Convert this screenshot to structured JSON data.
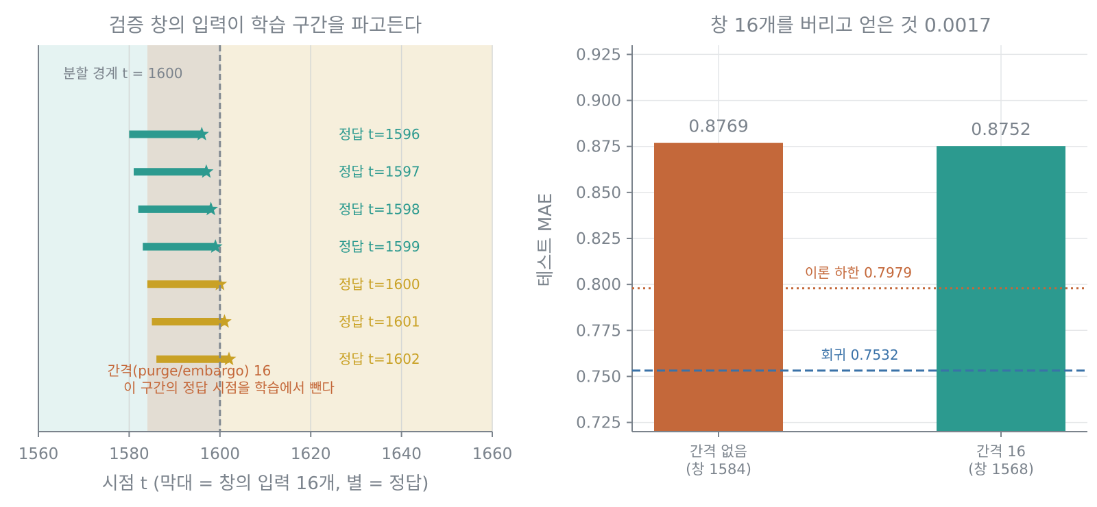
{
  "chart_data": [
    {
      "type": "bar",
      "title": "검증 창의 입력이 학습 구간을 파고든다",
      "xlabel": "시점 t (막대 = 창의 입력 16개, 별 = 정답)",
      "ylabel": "",
      "xlim": [
        1560,
        1660
      ],
      "xticks": [
        1560,
        1580,
        1600,
        1620,
        1640,
        1660
      ],
      "grid": true,
      "regions": [
        {
          "role": "train",
          "from": 1560,
          "to": 1584,
          "color": "#e5f3f2"
        },
        {
          "role": "gap",
          "from": 1584,
          "to": 1600,
          "color": "#e3ddd3"
        },
        {
          "role": "validation",
          "from": 1600,
          "to": 1660,
          "color": "#f6efdc"
        }
      ],
      "boundary": {
        "x": 1600,
        "label": "분할 경계 t = 1600",
        "color": "#808890"
      },
      "windows": [
        {
          "start": 1580,
          "answer": 1596,
          "label": "정답 t=1596",
          "color": "#2c9a8f"
        },
        {
          "start": 1581,
          "answer": 1597,
          "label": "정답 t=1597",
          "color": "#2c9a8f"
        },
        {
          "start": 1582,
          "answer": 1598,
          "label": "정답 t=1598",
          "color": "#2c9a8f"
        },
        {
          "start": 1583,
          "answer": 1599,
          "label": "정답 t=1599",
          "color": "#2c9a8f"
        },
        {
          "start": 1584,
          "answer": 1600,
          "label": "정답 t=1600",
          "color": "#c9a125"
        },
        {
          "start": 1585,
          "answer": 1601,
          "label": "정답 t=1601",
          "color": "#c9a125"
        },
        {
          "start": 1586,
          "answer": 1602,
          "label": "정답 t=1602",
          "color": "#c9a125"
        }
      ],
      "annotation": {
        "lines": [
          "간격(purge/embargo) 16",
          "이 구간의 정답 시점을 학습에서 뺀다"
        ],
        "color": "#c4683a"
      }
    },
    {
      "type": "bar",
      "title": "창 16개를 버리고 얻은 것 0.0017",
      "xlabel": "",
      "ylabel": "테스트 MAE",
      "ylim": [
        0.72,
        0.93
      ],
      "yticks": [
        0.725,
        0.75,
        0.775,
        0.8,
        0.825,
        0.85,
        0.875,
        0.9,
        0.925
      ],
      "grid": true,
      "categories": [
        [
          "간격 없음",
          "(창 1584)"
        ],
        [
          "간격 16",
          "(창 1568)"
        ]
      ],
      "values": [
        0.8769,
        0.8752
      ],
      "value_labels": [
        "0.8769",
        "0.8752"
      ],
      "colors": [
        "#c4683a",
        "#2c9a8f"
      ],
      "reference_lines": [
        {
          "value": 0.7979,
          "label": "이론 하한 0.7979",
          "style": "dotted",
          "color": "#c4683a"
        },
        {
          "value": 0.7532,
          "label": "회귀 0.7532",
          "style": "dashed",
          "color": "#3a72a8"
        }
      ]
    }
  ]
}
